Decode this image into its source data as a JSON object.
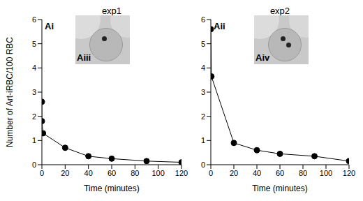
{
  "chart_data": [
    {
      "type": "line",
      "title": "exp1",
      "panel_label": "Ai",
      "inset_label": "Aiii",
      "x_label": "Time (minutes)",
      "y_label": "Number of Art-iRBC/100 RBC",
      "x": [
        0,
        0,
        1,
        20,
        40,
        60,
        90,
        120
      ],
      "values": [
        2.6,
        1.8,
        1.3,
        0.7,
        0.35,
        0.25,
        0.15,
        0.1
      ],
      "color": "#000000",
      "marker": "circle",
      "xlim": [
        0,
        120
      ],
      "xticks": [
        0,
        20,
        40,
        60,
        80,
        100,
        120
      ],
      "ylim": [
        0,
        6
      ],
      "yticks": [
        0,
        1,
        2,
        3,
        4,
        5,
        6
      ]
    },
    {
      "type": "line",
      "title": "exp2",
      "panel_label": "Aii",
      "inset_label": "Aiv",
      "x_label": "Time (minutes)",
      "x": [
        0,
        0.5,
        20,
        40,
        60,
        90,
        120
      ],
      "values": [
        5.6,
        3.65,
        0.9,
        0.6,
        0.45,
        0.35,
        0.15
      ],
      "color": "#000000",
      "marker": "circle",
      "xlim": [
        0,
        120
      ],
      "xticks": [
        0,
        20,
        40,
        60,
        80,
        100,
        120
      ],
      "ylim": [
        0,
        6
      ],
      "yticks": [
        0,
        1,
        2,
        3,
        4,
        5,
        6
      ]
    }
  ]
}
